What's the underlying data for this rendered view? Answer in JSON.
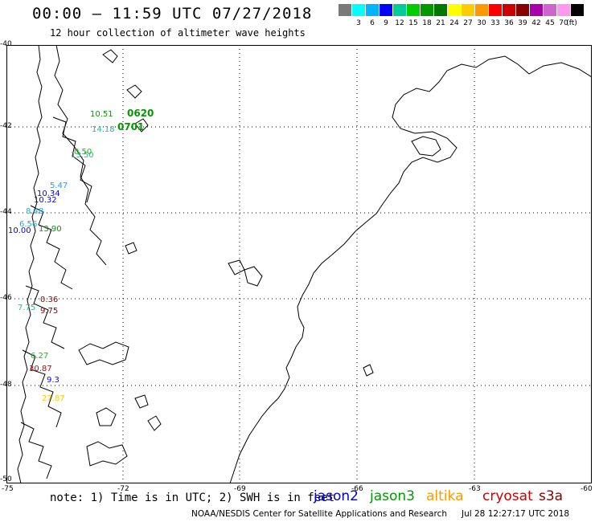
{
  "header": {
    "title": "00:00 – 11:59 UTC 07/27/2018",
    "subtitle": "12 hour collection of altimeter wave heights"
  },
  "legend": {
    "unit": "(ft)",
    "swatches": [
      {
        "label": "",
        "color": "#7a7a7a"
      },
      {
        "label": "3",
        "color": "#00ffff"
      },
      {
        "label": "6",
        "color": "#00b4ff"
      },
      {
        "label": "9",
        "color": "#0000ff"
      },
      {
        "label": "12",
        "color": "#00cc99"
      },
      {
        "label": "15",
        "color": "#00cc00"
      },
      {
        "label": "18",
        "color": "#009900"
      },
      {
        "label": "21",
        "color": "#007700"
      },
      {
        "label": "24",
        "color": "#ffff00"
      },
      {
        "label": "27",
        "color": "#ffcc00"
      },
      {
        "label": "30",
        "color": "#ff9900"
      },
      {
        "label": "33",
        "color": "#ff0000"
      },
      {
        "label": "36",
        "color": "#cc0000"
      },
      {
        "label": "39",
        "color": "#880000"
      },
      {
        "label": "42",
        "color": "#aa00aa"
      },
      {
        "label": "45",
        "color": "#cc66cc"
      },
      {
        "label": "70",
        "color": "#ff99ee"
      },
      {
        "label": "",
        "color": "#000000"
      }
    ]
  },
  "map": {
    "lat_labels": [
      "-40",
      "-42",
      "-44",
      "-46",
      "-48",
      "-50"
    ],
    "lon_labels": [
      "-75",
      "-72",
      "-69",
      "-66",
      "-63",
      "-60"
    ],
    "observations": [
      {
        "text": "0620",
        "color": "#009900",
        "big": true
      },
      {
        "text": "0701",
        "color": "#009900",
        "big": true
      },
      {
        "text": "10.51",
        "color": "#009900",
        "big": false
      },
      {
        "text": "14.18",
        "color": "#00cc99",
        "big": false
      },
      {
        "text": "0.50",
        "color": "#00cc00",
        "big": false
      },
      {
        "text": "13.50",
        "color": "#00cc99",
        "big": false
      },
      {
        "text": "5.47",
        "color": "#00b4ff",
        "big": false
      },
      {
        "text": "10.34",
        "color": "#0000ff",
        "big": false
      },
      {
        "text": "10.32",
        "color": "#0000ff",
        "big": false
      },
      {
        "text": "8.48",
        "color": "#00b4ff",
        "big": false
      },
      {
        "text": "10.00",
        "color": "#0000ff",
        "big": false
      },
      {
        "text": "13.90",
        "color": "#009900",
        "big": false
      },
      {
        "text": "6.56",
        "color": "#00b4ff",
        "big": false
      },
      {
        "text": "0.36",
        "color": "#880000",
        "big": false
      },
      {
        "text": "9.75",
        "color": "#880000",
        "big": false
      },
      {
        "text": "7.75",
        "color": "#00cc99",
        "big": false
      },
      {
        "text": "6.27",
        "color": "#00cc00",
        "big": false
      },
      {
        "text": "30.87",
        "color": "#cc0000",
        "big": false
      },
      {
        "text": "9.3",
        "color": "#0000ff",
        "big": false
      },
      {
        "text": "27.87",
        "color": "#ffcc00",
        "big": false
      }
    ]
  },
  "note": "note: 1) Time is in UTC; 2) SWH is in feet",
  "missions": [
    {
      "name": "jason2",
      "color": "#0000cc"
    },
    {
      "name": "jason3",
      "color": "#009900"
    },
    {
      "name": "altika",
      "color": "#ff9900"
    },
    {
      "name": "cryosat",
      "color": "#cc0000"
    },
    {
      "name": "s3a",
      "color": "#880000"
    }
  ],
  "footer": {
    "credit": "NOAA/NESDIS Center for Satellite Applications and Research",
    "timestamp": "Jul 28 12:27:17 UTC 2018"
  }
}
